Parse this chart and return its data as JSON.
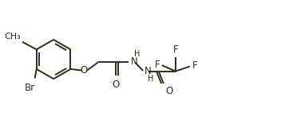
{
  "bg_color": "#ffffff",
  "line_color": "#2d2d1e",
  "bond_lw": 1.4,
  "font_size": 8.5,
  "figsize": [
    3.62,
    1.56
  ],
  "dpi": 100,
  "xlim": [
    0,
    10.2
  ],
  "ylim": [
    0,
    4.3
  ]
}
